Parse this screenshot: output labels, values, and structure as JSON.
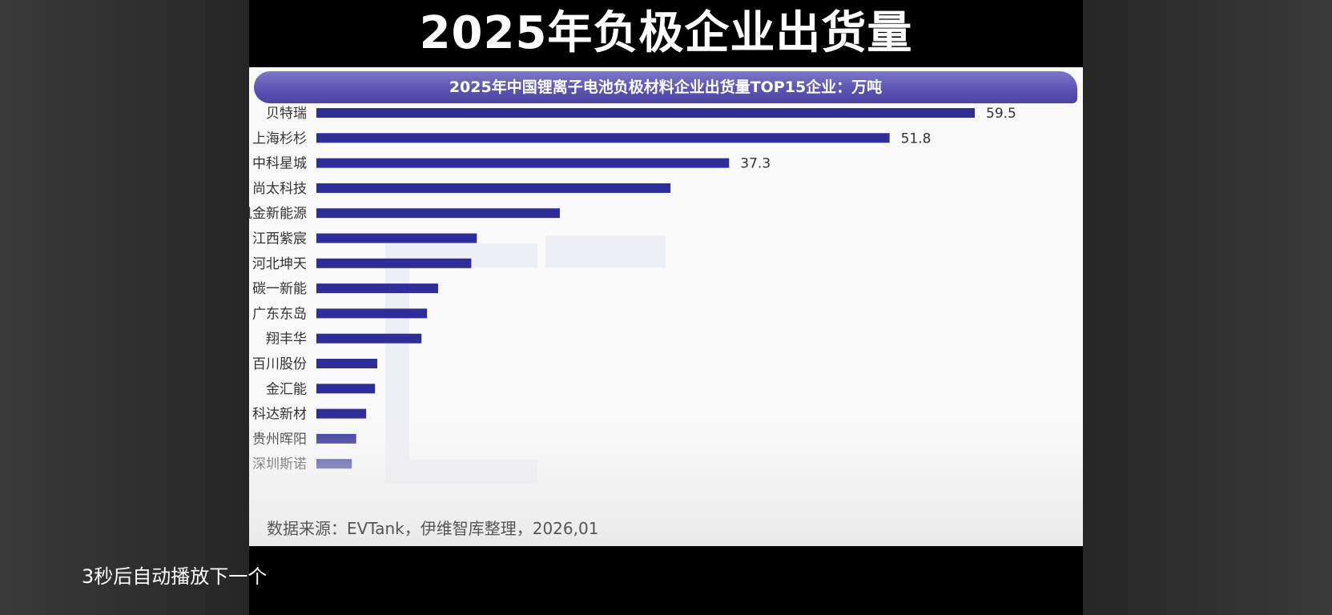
{
  "video": {
    "title": "2025年负极企业出货量",
    "autoplay_notice": "3秒后自动播放下一个"
  },
  "chart_data": {
    "type": "bar",
    "orientation": "horizontal",
    "title": "2025年中国锂离子电池负极材料企业出货量TOP15企业：万吨",
    "categories": [
      "贝特瑞",
      "上海杉杉",
      "中科星城",
      "尚太科技",
      "凯金新能源",
      "江西紫宸",
      "河北坤天",
      "碳一新能",
      "广东东岛",
      "翔丰华",
      "百川股份",
      "金汇能",
      "科达新材",
      "贵州晖阳",
      "深圳斯诺"
    ],
    "values": [
      59.5,
      51.8,
      37.3,
      32.0,
      22.0,
      14.5,
      14.0,
      11.0,
      10.0,
      9.5,
      5.5,
      5.3,
      4.5,
      3.6,
      3.2
    ],
    "data_labels": [
      "59.5",
      "51.8",
      "37.3",
      "",
      "",
      "",
      "",
      "",
      "",
      "",
      "",
      "",
      "",
      "",
      ""
    ],
    "xlim": [
      0,
      59.5
    ],
    "bar_color": "#2e2d9a",
    "grid": false,
    "source": "数据来源：EVTank，伊维智库整理，2026,01"
  }
}
